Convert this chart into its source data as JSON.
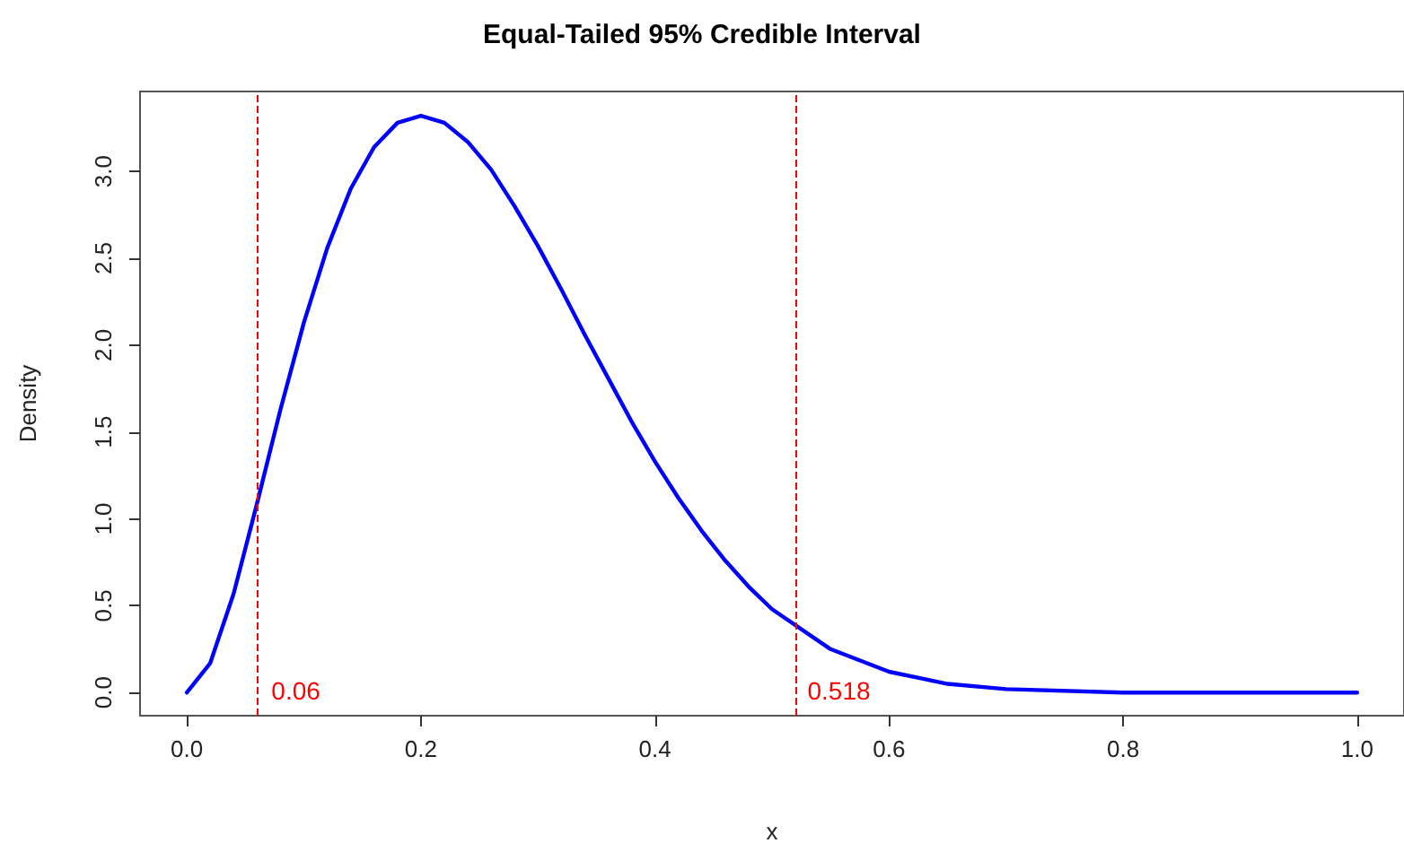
{
  "chart_data": {
    "type": "line",
    "title": "Equal-Tailed 95% Credible Interval",
    "xlabel": "x",
    "ylabel": "Density",
    "x": [
      0,
      0.02,
      0.04,
      0.06,
      0.08,
      0.1,
      0.12,
      0.14,
      0.16,
      0.18,
      0.2,
      0.22,
      0.24,
      0.26,
      0.28,
      0.3,
      0.32,
      0.34,
      0.36,
      0.38,
      0.4,
      0.42,
      0.44,
      0.46,
      0.48,
      0.5,
      0.55,
      0.6,
      0.65,
      0.7,
      0.8,
      0.9,
      1
    ],
    "series": [
      {
        "color": "#0000ff",
        "values": [
          0,
          0.17,
          0.57,
          1.09,
          1.63,
          2.13,
          2.56,
          2.9,
          3.14,
          3.28,
          3.32,
          3.28,
          3.17,
          3.01,
          2.8,
          2.57,
          2.32,
          2.06,
          1.81,
          1.56,
          1.33,
          1.12,
          0.93,
          0.76,
          0.61,
          0.48,
          0.25,
          0.12,
          0.05,
          0.02,
          0,
          0,
          0
        ]
      }
    ],
    "xlim": [
      -0.04,
      1.04
    ],
    "ylim": [
      -0.133,
      3.46
    ],
    "xticks": [
      {
        "value": 0,
        "label": "0.0"
      },
      0.2,
      0.4,
      0.6,
      0.8,
      {
        "value": 1,
        "label": "1.0"
      }
    ],
    "yticks": [
      {
        "value": 0,
        "label": "0.0"
      },
      0.5,
      {
        "value": 1,
        "label": "1.0"
      },
      1.5,
      {
        "value": 2,
        "label": "2.0"
      },
      2.5,
      {
        "value": 3,
        "label": "3.0"
      }
    ],
    "ref_lines": [
      {
        "axis": "x",
        "value": 0.06,
        "label": "0.06",
        "color": "#ff0000",
        "line_style": "dashed"
      },
      {
        "axis": "x",
        "value": 0.518,
        "label": "0.518",
        "color": "#ff0000",
        "line_style": "dashed"
      }
    ],
    "grid": false,
    "marker": "none",
    "line_style": "solid"
  }
}
